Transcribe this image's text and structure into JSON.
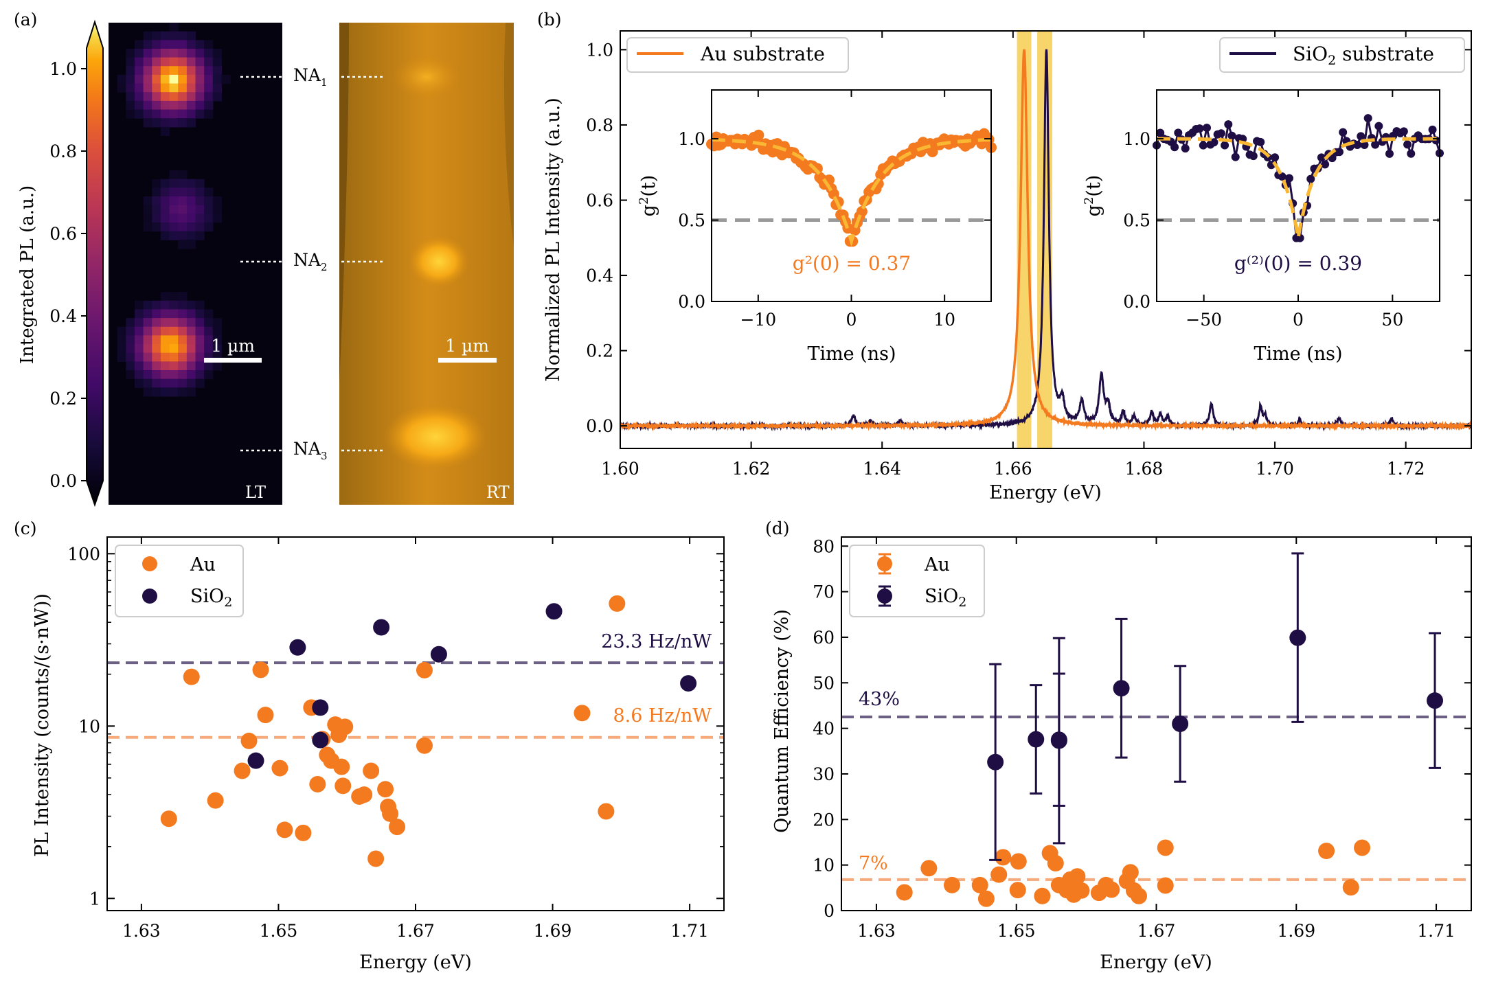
{
  "colors": {
    "au": "#f47a20",
    "sio2": "#1e0e44",
    "au_line": "#f6aa7c",
    "sio2_line": "#6b5f84",
    "fit": "#f9b733",
    "half": "#999999",
    "highlight": "#f8d56a"
  },
  "chart_data": [
    {
      "panel": "a",
      "type": "heatmap",
      "label": "(a)",
      "colorbar": {
        "label": "Integrated PL (a.u.)",
        "ticks": [
          "0.0",
          "0.2",
          "0.4",
          "0.6",
          "0.8",
          "1.0"
        ],
        "range": [
          0,
          1.05
        ]
      },
      "spots": [
        {
          "name": "NA",
          "sub": "1",
          "peak": 1.0
        },
        {
          "name": "NA",
          "sub": "2",
          "peak": 0.3
        },
        {
          "name": "NA",
          "sub": "3",
          "peak": 0.95
        }
      ],
      "left_tag": "LT",
      "right_tag": "RT",
      "scalebar": "1 µm"
    },
    {
      "panel": "b",
      "type": "line",
      "label": "(b)",
      "xlabel": "Energy (eV)",
      "ylabel": "Normalized PL Intensity (a.u.)",
      "xlim": [
        1.6,
        1.73
      ],
      "ylim": [
        -0.06,
        1.05
      ],
      "xticks": [
        "1.60",
        "1.62",
        "1.64",
        "1.66",
        "1.68",
        "1.70",
        "1.72"
      ],
      "yticks": [
        "0.0",
        "0.2",
        "0.4",
        "0.6",
        "0.8",
        "1.0"
      ],
      "highlight_bands": [
        [
          1.6606,
          1.6628
        ],
        [
          1.6637,
          1.666
        ]
      ],
      "series": [
        {
          "name": "Au substrate",
          "type": "lorentzian",
          "center": 1.6617,
          "width": 0.00065,
          "amplitude": 1.0
        },
        {
          "name": "SiO2 substrate",
          "type": "peaks",
          "peaks": [
            [
              1.6651,
              1.0,
              0.00045
            ],
            [
              1.6735,
              0.13,
              0.0004
            ],
            [
              1.6356,
              0.03,
              0.0003
            ],
            [
              1.6382,
              0.012,
              0.0003
            ],
            [
              1.6428,
              0.015,
              0.0003
            ],
            [
              1.6675,
              0.055,
              0.0004
            ],
            [
              1.6705,
              0.06,
              0.0004
            ],
            [
              1.6745,
              0.05,
              0.0004
            ],
            [
              1.6768,
              0.035,
              0.0003
            ],
            [
              1.6785,
              0.025,
              0.0003
            ],
            [
              1.6812,
              0.035,
              0.0003
            ],
            [
              1.6825,
              0.03,
              0.0003
            ],
            [
              1.6836,
              0.025,
              0.0003
            ],
            [
              1.6903,
              0.06,
              0.0003
            ],
            [
              1.6978,
              0.05,
              0.0003
            ],
            [
              1.6985,
              0.025,
              0.0003
            ],
            [
              1.7038,
              0.015,
              0.0003
            ],
            [
              1.7098,
              0.02,
              0.0003
            ],
            [
              1.7178,
              0.02,
              0.0003
            ]
          ]
        }
      ],
      "insets": [
        {
          "xlabel": "Time (ns)",
          "ylabel": "g²(t)",
          "xlim": [
            -15,
            15
          ],
          "ylim": [
            0,
            1.3
          ],
          "xticks": [
            "−10",
            "0",
            "10"
          ],
          "xtick_values": [
            -10,
            0,
            10
          ],
          "yticks": [
            "0.0",
            "0.5",
            "1.0"
          ],
          "g0": 0.37,
          "tau": 3.2,
          "noise": 0.035,
          "npoints": 120,
          "annotation": "g²(0) = 0.37"
        },
        {
          "xlabel": "Time (ns)",
          "ylabel": "g²(t)",
          "xlim": [
            -75,
            75
          ],
          "ylim": [
            0,
            1.3
          ],
          "xticks": [
            "−50",
            "0",
            "50"
          ],
          "xtick_values": [
            -50,
            0,
            50
          ],
          "yticks": [
            "0.0",
            "0.5",
            "1.0"
          ],
          "g0": 0.39,
          "tau": 9,
          "noise": 0.085,
          "npoints": 80,
          "annotation": "g⁽²⁾(0) = 0.39"
        }
      ]
    },
    {
      "panel": "c",
      "type": "scatter",
      "label": "(c)",
      "xlabel": "Energy (eV)",
      "ylabel": "PL Intensity (counts/(s·nW))",
      "yscale": "log",
      "xlim": [
        1.625,
        1.715
      ],
      "ylim": [
        0.85,
        125
      ],
      "xticks": [
        "1.63",
        "1.65",
        "1.67",
        "1.69",
        "1.71"
      ],
      "yticks": [
        "1",
        "10",
        "100"
      ],
      "series": [
        {
          "name": "Au",
          "points": [
            [
              1.634,
              2.9
            ],
            [
              1.6373,
              19.3
            ],
            [
              1.6408,
              3.7
            ],
            [
              1.6447,
              5.5
            ],
            [
              1.6457,
              8.2
            ],
            [
              1.6474,
              21.2
            ],
            [
              1.6481,
              11.6
            ],
            [
              1.6502,
              5.7
            ],
            [
              1.6509,
              2.5
            ],
            [
              1.6536,
              2.4
            ],
            [
              1.6548,
              12.8
            ],
            [
              1.6557,
              4.6
            ],
            [
              1.6564,
              8.4
            ],
            [
              1.6571,
              6.8
            ],
            [
              1.6577,
              6.3
            ],
            [
              1.6583,
              10.2
            ],
            [
              1.6588,
              8.9
            ],
            [
              1.6592,
              5.8
            ],
            [
              1.6597,
              9.9
            ],
            [
              1.6594,
              4.5
            ],
            [
              1.6618,
              3.9
            ],
            [
              1.6625,
              4.0
            ],
            [
              1.6635,
              5.5
            ],
            [
              1.6642,
              1.7
            ],
            [
              1.6656,
              4.3
            ],
            [
              1.666,
              3.4
            ],
            [
              1.6663,
              3.1
            ],
            [
              1.6673,
              2.6
            ],
            [
              1.6713,
              21.1
            ],
            [
              1.6713,
              7.7
            ],
            [
              1.6943,
              11.9
            ],
            [
              1.6994,
              51.4
            ],
            [
              1.6978,
              3.2
            ]
          ]
        },
        {
          "name": "SiO₂",
          "points": [
            [
              1.6467,
              6.3
            ],
            [
              1.6528,
              28.6
            ],
            [
              1.6561,
              12.8
            ],
            [
              1.6561,
              8.3
            ],
            [
              1.665,
              37.4
            ],
            [
              1.6734,
              26.1
            ],
            [
              1.6902,
              46.3
            ],
            [
              1.7098,
              17.7
            ]
          ]
        }
      ],
      "hlines": [
        {
          "value": 23.3,
          "label": "23.3 Hz/nW",
          "series": "SiO₂"
        },
        {
          "value": 8.6,
          "label": "8.6 Hz/nW",
          "series": "Au"
        }
      ]
    },
    {
      "panel": "d",
      "type": "scatter",
      "label": "(d)",
      "xlabel": "Energy (eV)",
      "ylabel": "Quantum Efficiency (%)",
      "xlim": [
        1.625,
        1.715
      ],
      "ylim": [
        0,
        82
      ],
      "xticks": [
        "1.63",
        "1.65",
        "1.67",
        "1.69",
        "1.71"
      ],
      "yticks": [
        "0",
        "10",
        "20",
        "30",
        "40",
        "50",
        "60",
        "70",
        "80"
      ],
      "series": [
        {
          "name": "Au",
          "points": [
            [
              1.634,
              4
            ],
            [
              1.6375,
              9.3
            ],
            [
              1.6408,
              5.6
            ],
            [
              1.6448,
              5.6
            ],
            [
              1.6457,
              2.6
            ],
            [
              1.6475,
              7.9
            ],
            [
              1.6481,
              11.7
            ],
            [
              1.6503,
              10.8
            ],
            [
              1.6502,
              4.5
            ],
            [
              1.6537,
              3.2
            ],
            [
              1.6548,
              12.6
            ],
            [
              1.6556,
              10.4
            ],
            [
              1.6561,
              5.6
            ],
            [
              1.6572,
              4.5
            ],
            [
              1.6577,
              6.8
            ],
            [
              1.6582,
              3.5
            ],
            [
              1.6587,
              7.5
            ],
            [
              1.6593,
              4.4
            ],
            [
              1.6618,
              3.9
            ],
            [
              1.6628,
              5.6
            ],
            [
              1.6636,
              4.6
            ],
            [
              1.6658,
              6.5
            ],
            [
              1.6663,
              8.4
            ],
            [
              1.6668,
              4.4
            ],
            [
              1.6675,
              3.2
            ],
            [
              1.6713,
              13.8
            ],
            [
              1.6713,
              5.5
            ],
            [
              1.6943,
              13.1
            ],
            [
              1.6994,
              13.8
            ],
            [
              1.6978,
              5.1
            ]
          ]
        },
        {
          "name": "SiO₂",
          "points": [
            [
              1.647,
              32.6,
              21.5
            ],
            [
              1.6528,
              37.6,
              11.9
            ],
            [
              1.6561,
              37.3,
              22.5
            ],
            [
              1.6561,
              37.5,
              14.5
            ],
            [
              1.665,
              48.8,
              15.2
            ],
            [
              1.6734,
              41,
              12.7
            ],
            [
              1.6902,
              59.9,
              18.5
            ],
            [
              1.7098,
              46.1,
              14.8
            ]
          ]
        }
      ],
      "hlines": [
        {
          "value": 42.5,
          "label": "43%",
          "series": "SiO₂"
        },
        {
          "value": 6.8,
          "label": "7%",
          "series": "Au"
        }
      ]
    }
  ]
}
